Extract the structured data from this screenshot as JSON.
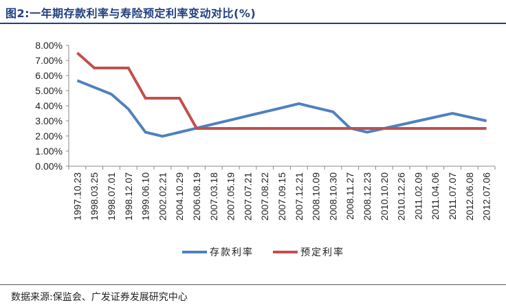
{
  "figure": {
    "title": "图2:一年期存款利率与寿险预定利率变动对比(%)",
    "source": "数据来源:保监会、广发证券发展研究中心"
  },
  "chart_data": {
    "type": "line",
    "title": "图2:一年期存款利率与寿险预定利率变动对比(%)",
    "xlabel": "",
    "ylabel": "",
    "categories": [
      "1997.10.23",
      "1998.03.25",
      "1998.07.01",
      "1998.12.07",
      "1999.06.10",
      "2002.02.21",
      "2004.10.29",
      "2006.08.19",
      "2007.03.18",
      "2007.05.19",
      "2007.07.21",
      "2007.08.22",
      "2007.09.15",
      "2007.12.21",
      "2008.10.09",
      "2008.10.30",
      "2008.11.27",
      "2008.12.23",
      "2010.10.20",
      "2010.12.26",
      "2011.02.09",
      "2011.04.06",
      "2011.07.07",
      "2012.06.08",
      "2012.07.06"
    ],
    "ylim": [
      0,
      8
    ],
    "yticks": [
      "0.00%",
      "1.00%",
      "2.00%",
      "3.00%",
      "4.00%",
      "5.00%",
      "6.00%",
      "7.00%",
      "8.00%"
    ],
    "grid": false,
    "legend_position": "bottom",
    "series": [
      {
        "name": "存款利率",
        "color": "#4f81bd",
        "values": [
          5.67,
          5.22,
          4.77,
          3.78,
          2.25,
          1.98,
          2.25,
          2.52,
          2.79,
          3.06,
          3.33,
          3.6,
          3.87,
          4.14,
          3.87,
          3.6,
          2.52,
          2.25,
          2.5,
          2.75,
          3.0,
          3.25,
          3.5,
          3.25,
          3.0
        ]
      },
      {
        "name": "预定利率",
        "color": "#c0504d",
        "values": [
          7.5,
          6.5,
          6.5,
          6.5,
          4.5,
          4.5,
          4.5,
          2.5,
          2.5,
          2.5,
          2.5,
          2.5,
          2.5,
          2.5,
          2.5,
          2.5,
          2.5,
          2.5,
          2.5,
          2.5,
          2.5,
          2.5,
          2.5,
          2.5,
          2.5
        ]
      }
    ]
  }
}
